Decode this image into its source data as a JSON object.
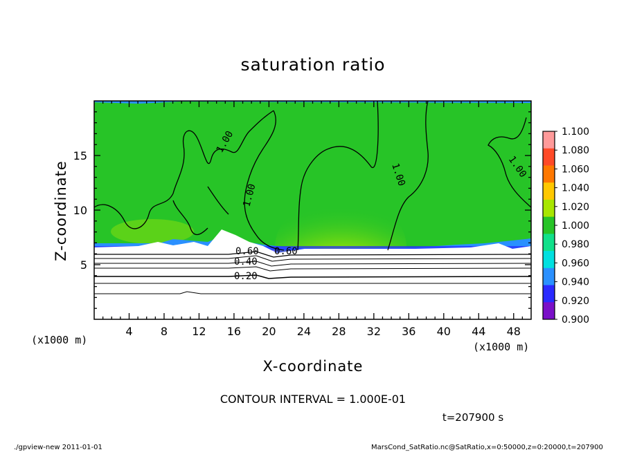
{
  "chart_data": {
    "type": "heatmap",
    "title": "saturation ratio",
    "xlabel": "X-coordinate",
    "ylabel": "Z-coordinate",
    "x_unit": "(x1000 m)",
    "y_unit": "(x1000 m)",
    "xlim": [
      0,
      50
    ],
    "ylim": [
      0,
      20
    ],
    "xticks": [
      4,
      8,
      12,
      16,
      20,
      24,
      28,
      32,
      36,
      40,
      44,
      48
    ],
    "yticks": [
      5,
      10,
      15
    ],
    "grid": false,
    "colorbar": {
      "levels": [
        "1.100",
        "1.080",
        "1.060",
        "1.040",
        "1.020",
        "1.000",
        "0.980",
        "0.960",
        "0.940",
        "0.920",
        "0.900"
      ],
      "colors": [
        "#ff9a9a",
        "#ff4a28",
        "#ff7800",
        "#ffc800",
        "#a8e600",
        "#27c427",
        "#11e08a",
        "#00e0e0",
        "#2a90ff",
        "#2a2aff",
        "#7a10c8"
      ]
    },
    "contour_labels": [
      "1.00",
      "1.00",
      "1.00",
      "1.00",
      "0.60",
      "0.60",
      "0.40",
      "0.20"
    ],
    "contour_interval": "CONTOUR INTERVAL = 1.000E-01",
    "time": "t=207900 s"
  },
  "footer": {
    "left": "./gpview-new  2011-01-01",
    "right": "MarsCond_SatRatio.nc@SatRatio,x=0:50000,z=0:20000,t=207900"
  }
}
